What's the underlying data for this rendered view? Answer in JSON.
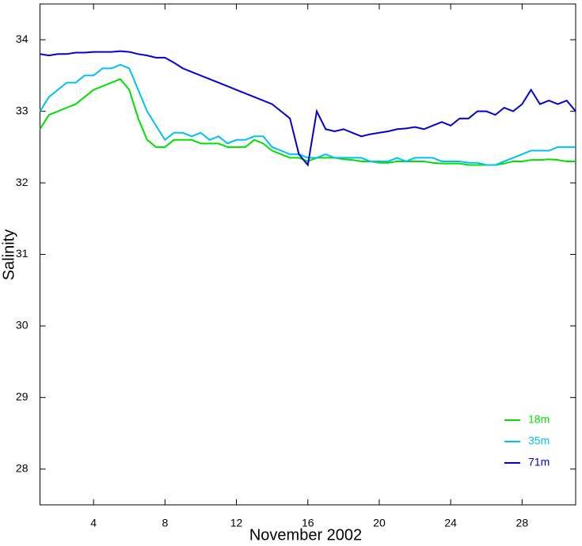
{
  "chart_data": {
    "type": "line",
    "xlabel": "November 2002",
    "ylabel": "Salinity",
    "x": [
      1,
      1.5,
      2,
      2.5,
      3,
      3.5,
      4,
      4.5,
      5,
      5.5,
      6,
      6.5,
      7,
      7.5,
      8,
      8.5,
      9,
      9.5,
      10,
      10.5,
      11,
      11.5,
      12,
      12.5,
      13,
      13.5,
      14,
      14.5,
      15,
      15.5,
      16,
      16.5,
      17,
      17.5,
      18,
      18.5,
      19,
      19.5,
      20,
      20.5,
      21,
      21.5,
      22,
      22.5,
      23,
      23.5,
      24,
      24.5,
      25,
      25.5,
      26,
      26.5,
      27,
      27.5,
      28,
      28.5,
      29,
      29.5,
      30,
      30.5,
      31
    ],
    "series": [
      {
        "name": "18m",
        "color": "#00e000",
        "values": [
          32.75,
          32.95,
          33.0,
          33.05,
          33.1,
          33.2,
          33.3,
          33.35,
          33.4,
          33.45,
          33.3,
          32.9,
          32.6,
          32.5,
          32.5,
          32.6,
          32.6,
          32.6,
          32.55,
          32.55,
          32.55,
          32.5,
          32.5,
          32.5,
          32.6,
          32.55,
          32.45,
          32.4,
          32.35,
          32.35,
          32.3,
          32.35,
          32.35,
          32.35,
          32.33,
          32.32,
          32.3,
          32.3,
          32.28,
          32.28,
          32.3,
          32.3,
          32.3,
          32.3,
          32.28,
          32.27,
          32.27,
          32.27,
          32.25,
          32.25,
          32.25,
          32.25,
          32.27,
          32.3,
          32.3,
          32.32,
          32.32,
          32.33,
          32.32,
          32.3,
          32.3
        ]
      },
      {
        "name": "35m",
        "color": "#00c0f0",
        "values": [
          33.0,
          33.2,
          33.3,
          33.4,
          33.4,
          33.5,
          33.5,
          33.6,
          33.6,
          33.65,
          33.6,
          33.3,
          33.0,
          32.8,
          32.6,
          32.7,
          32.7,
          32.65,
          32.7,
          32.6,
          32.65,
          32.55,
          32.6,
          32.6,
          32.65,
          32.65,
          32.5,
          32.45,
          32.4,
          32.4,
          32.35,
          32.35,
          32.4,
          32.35,
          32.35,
          32.35,
          32.35,
          32.3,
          32.3,
          32.3,
          32.35,
          32.3,
          32.35,
          32.35,
          32.35,
          32.3,
          32.3,
          32.3,
          32.28,
          32.28,
          32.25,
          32.25,
          32.3,
          32.35,
          32.4,
          32.45,
          32.45,
          32.45,
          32.5,
          32.5,
          32.5
        ]
      },
      {
        "name": "71m",
        "color": "#0000d0",
        "values": [
          33.8,
          33.78,
          33.8,
          33.8,
          33.82,
          33.82,
          33.83,
          33.83,
          33.83,
          33.84,
          33.83,
          33.8,
          33.78,
          33.75,
          33.75,
          33.68,
          33.6,
          33.55,
          33.5,
          33.45,
          33.4,
          33.35,
          33.3,
          33.25,
          33.2,
          33.15,
          33.1,
          33.0,
          32.9,
          32.4,
          32.25,
          33.0,
          32.75,
          32.72,
          32.75,
          32.7,
          32.65,
          32.68,
          32.7,
          32.72,
          32.75,
          32.76,
          32.78,
          32.75,
          32.8,
          32.85,
          32.8,
          32.9,
          32.9,
          33.0,
          33.0,
          32.95,
          33.05,
          33.0,
          33.1,
          33.3,
          33.1,
          33.15,
          33.1,
          33.15,
          33.0
        ]
      }
    ],
    "xlim": [
      1,
      31
    ],
    "xticks": [
      4,
      8,
      12,
      16,
      20,
      24,
      28
    ],
    "ylim": [
      27.5,
      34.5
    ],
    "yticks": [
      28,
      29,
      30,
      31,
      32,
      33,
      34
    ],
    "legend": "lower right"
  }
}
